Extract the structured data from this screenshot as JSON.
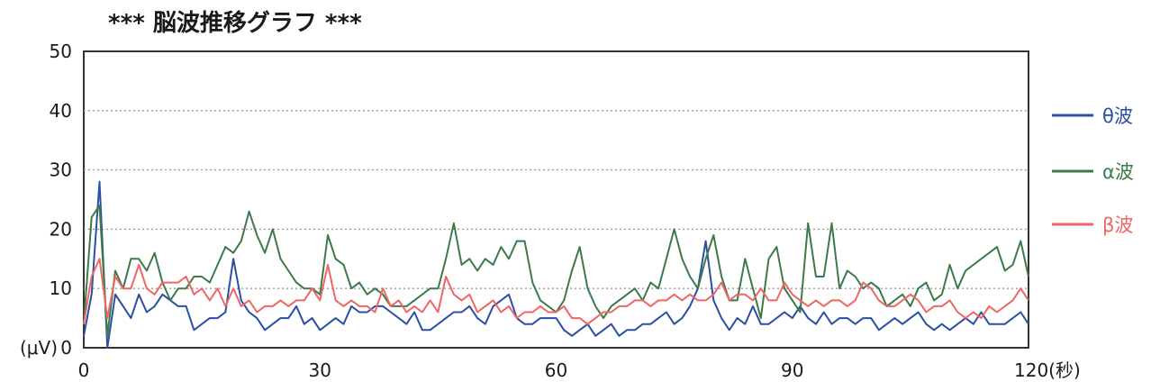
{
  "chart_data": {
    "type": "line",
    "title": "*** 脳波推移グラフ ***",
    "x_unit": "(秒)",
    "y_unit": "(μV)",
    "xlim": [
      0,
      120
    ],
    "ylim": [
      0,
      50
    ],
    "x_ticks": [
      0,
      30,
      60,
      90,
      120
    ],
    "y_ticks": [
      0,
      10,
      20,
      30,
      40,
      50
    ],
    "grid": "horizontal-dotted",
    "legend": "right",
    "x": [
      0,
      1,
      2,
      3,
      4,
      5,
      6,
      7,
      8,
      9,
      10,
      11,
      12,
      13,
      14,
      15,
      16,
      17,
      18,
      19,
      20,
      21,
      22,
      23,
      24,
      25,
      26,
      27,
      28,
      29,
      30,
      31,
      32,
      33,
      34,
      35,
      36,
      37,
      38,
      39,
      40,
      41,
      42,
      43,
      44,
      45,
      46,
      47,
      48,
      49,
      50,
      51,
      52,
      53,
      54,
      55,
      56,
      57,
      58,
      59,
      60,
      61,
      62,
      63,
      64,
      65,
      66,
      67,
      68,
      69,
      70,
      71,
      72,
      73,
      74,
      75,
      76,
      77,
      78,
      79,
      80,
      81,
      82,
      83,
      84,
      85,
      86,
      87,
      88,
      89,
      90,
      91,
      92,
      93,
      94,
      95,
      96,
      97,
      98,
      99,
      100,
      101,
      102,
      103,
      104,
      105,
      106,
      107,
      108,
      109,
      110,
      111,
      112,
      113,
      114,
      115,
      116,
      117,
      118,
      119,
      120
    ],
    "series": [
      {
        "name": "θ波",
        "color": "#2a4fa3",
        "values": [
          2,
          9,
          28,
          0,
          9,
          7,
          5,
          9,
          6,
          7,
          9,
          8,
          7,
          7,
          3,
          4,
          5,
          5,
          6,
          15,
          8,
          6,
          5,
          3,
          4,
          5,
          5,
          7,
          4,
          5,
          3,
          4,
          5,
          4,
          7,
          6,
          6,
          7,
          7,
          6,
          5,
          4,
          6,
          3,
          3,
          4,
          5,
          6,
          6,
          7,
          5,
          4,
          7,
          8,
          9,
          5,
          4,
          4,
          5,
          5,
          5,
          3,
          2,
          3,
          4,
          2,
          3,
          4,
          2,
          3,
          3,
          4,
          4,
          5,
          6,
          4,
          5,
          7,
          10,
          18,
          8,
          5,
          3,
          5,
          4,
          7,
          4,
          4,
          5,
          6,
          5,
          7,
          5,
          4,
          6,
          4,
          5,
          5,
          4,
          5,
          5,
          3,
          4,
          5,
          4,
          5,
          6,
          4,
          3,
          4,
          3,
          4,
          5,
          4,
          6,
          4,
          4,
          4,
          5,
          6,
          4
        ]
      },
      {
        "name": "α波",
        "color": "#3c7a4a",
        "values": [
          4,
          22,
          24,
          2,
          13,
          10,
          15,
          15,
          13,
          16,
          11,
          8,
          10,
          10,
          12,
          12,
          11,
          14,
          17,
          16,
          18,
          23,
          19,
          16,
          20,
          15,
          13,
          11,
          10,
          10,
          9,
          19,
          15,
          14,
          10,
          11,
          9,
          10,
          9,
          7,
          7,
          7,
          8,
          9,
          10,
          10,
          15,
          21,
          14,
          15,
          13,
          15,
          14,
          17,
          15,
          18,
          18,
          11,
          8,
          7,
          6,
          8,
          13,
          17,
          10,
          7,
          5,
          7,
          8,
          9,
          10,
          8,
          11,
          10,
          15,
          20,
          15,
          12,
          10,
          15,
          19,
          12,
          8,
          8,
          15,
          10,
          5,
          15,
          17,
          10,
          8,
          6,
          21,
          12,
          12,
          21,
          10,
          13,
          12,
          10,
          11,
          10,
          7,
          8,
          9,
          7,
          10,
          11,
          8,
          9,
          14,
          10,
          13,
          14,
          15,
          16,
          17,
          13,
          14,
          18,
          12
        ]
      },
      {
        "name": "β波",
        "color": "#ee6666",
        "values": [
          4,
          12,
          15,
          5,
          12,
          10,
          10,
          14,
          10,
          9,
          11,
          11,
          11,
          12,
          9,
          10,
          8,
          10,
          7,
          10,
          7,
          8,
          6,
          7,
          7,
          8,
          7,
          8,
          8,
          10,
          8,
          14,
          8,
          7,
          8,
          7,
          7,
          6,
          10,
          7,
          8,
          6,
          7,
          6,
          8,
          6,
          12,
          9,
          8,
          9,
          6,
          7,
          8,
          6,
          7,
          5,
          6,
          6,
          7,
          6,
          6,
          7,
          5,
          5,
          4,
          5,
          6,
          6,
          7,
          7,
          8,
          8,
          7,
          8,
          8,
          9,
          8,
          9,
          8,
          8,
          9,
          11,
          8,
          9,
          9,
          8,
          10,
          8,
          8,
          11,
          9,
          8,
          7,
          8,
          7,
          8,
          8,
          7,
          8,
          11,
          10,
          8,
          7,
          7,
          8,
          9,
          8,
          6,
          7,
          7,
          8,
          6,
          5,
          6,
          5,
          7,
          6,
          7,
          8,
          10,
          8
        ]
      }
    ]
  }
}
